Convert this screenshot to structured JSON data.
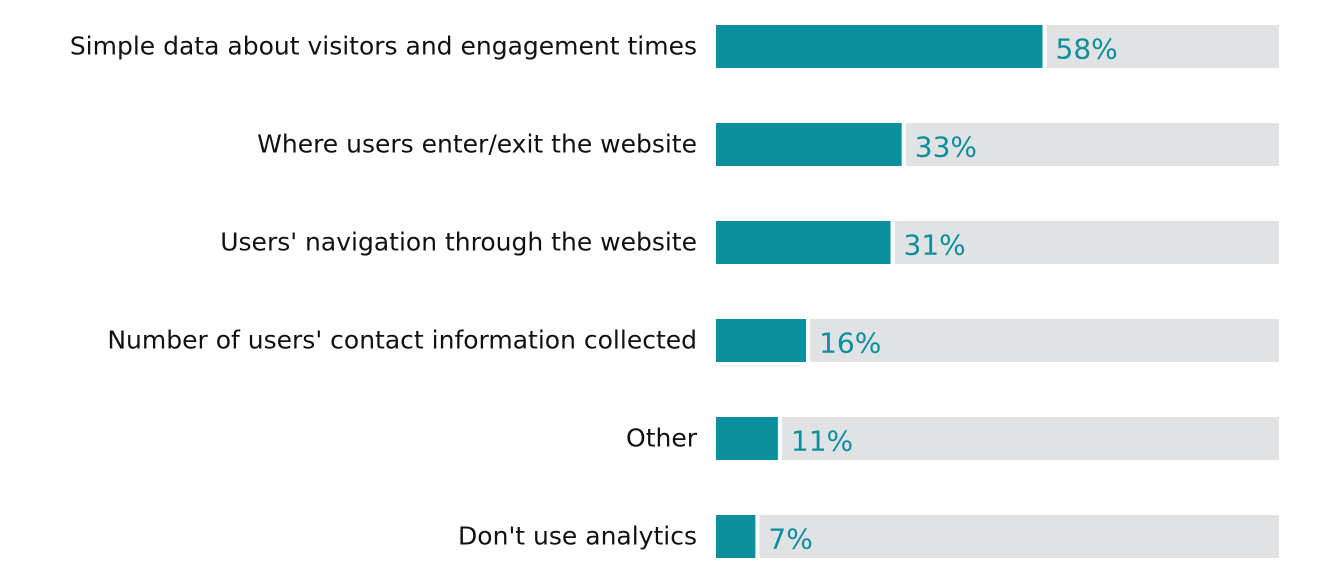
{
  "chart_data": {
    "type": "bar",
    "orientation": "horizontal",
    "categories": [
      "Simple data about visitors and engagement times",
      "Where users enter/exit the website",
      "Users' navigation through the website",
      "Number of users' contact information collected",
      "Other",
      "Don't use analytics"
    ],
    "values": [
      58,
      33,
      31,
      16,
      11,
      7
    ],
    "value_labels": [
      "58%",
      "33%",
      "31%",
      "16%",
      "11%",
      "7%"
    ],
    "xlim": [
      0,
      100
    ],
    "title": "",
    "xlabel": "",
    "ylabel": "",
    "grid": false,
    "legend": "none"
  },
  "colors": {
    "bar": "#0a8f9c",
    "track": "#e1e2e4",
    "value_text": "#0a8f9c",
    "label_text": "#111111"
  }
}
